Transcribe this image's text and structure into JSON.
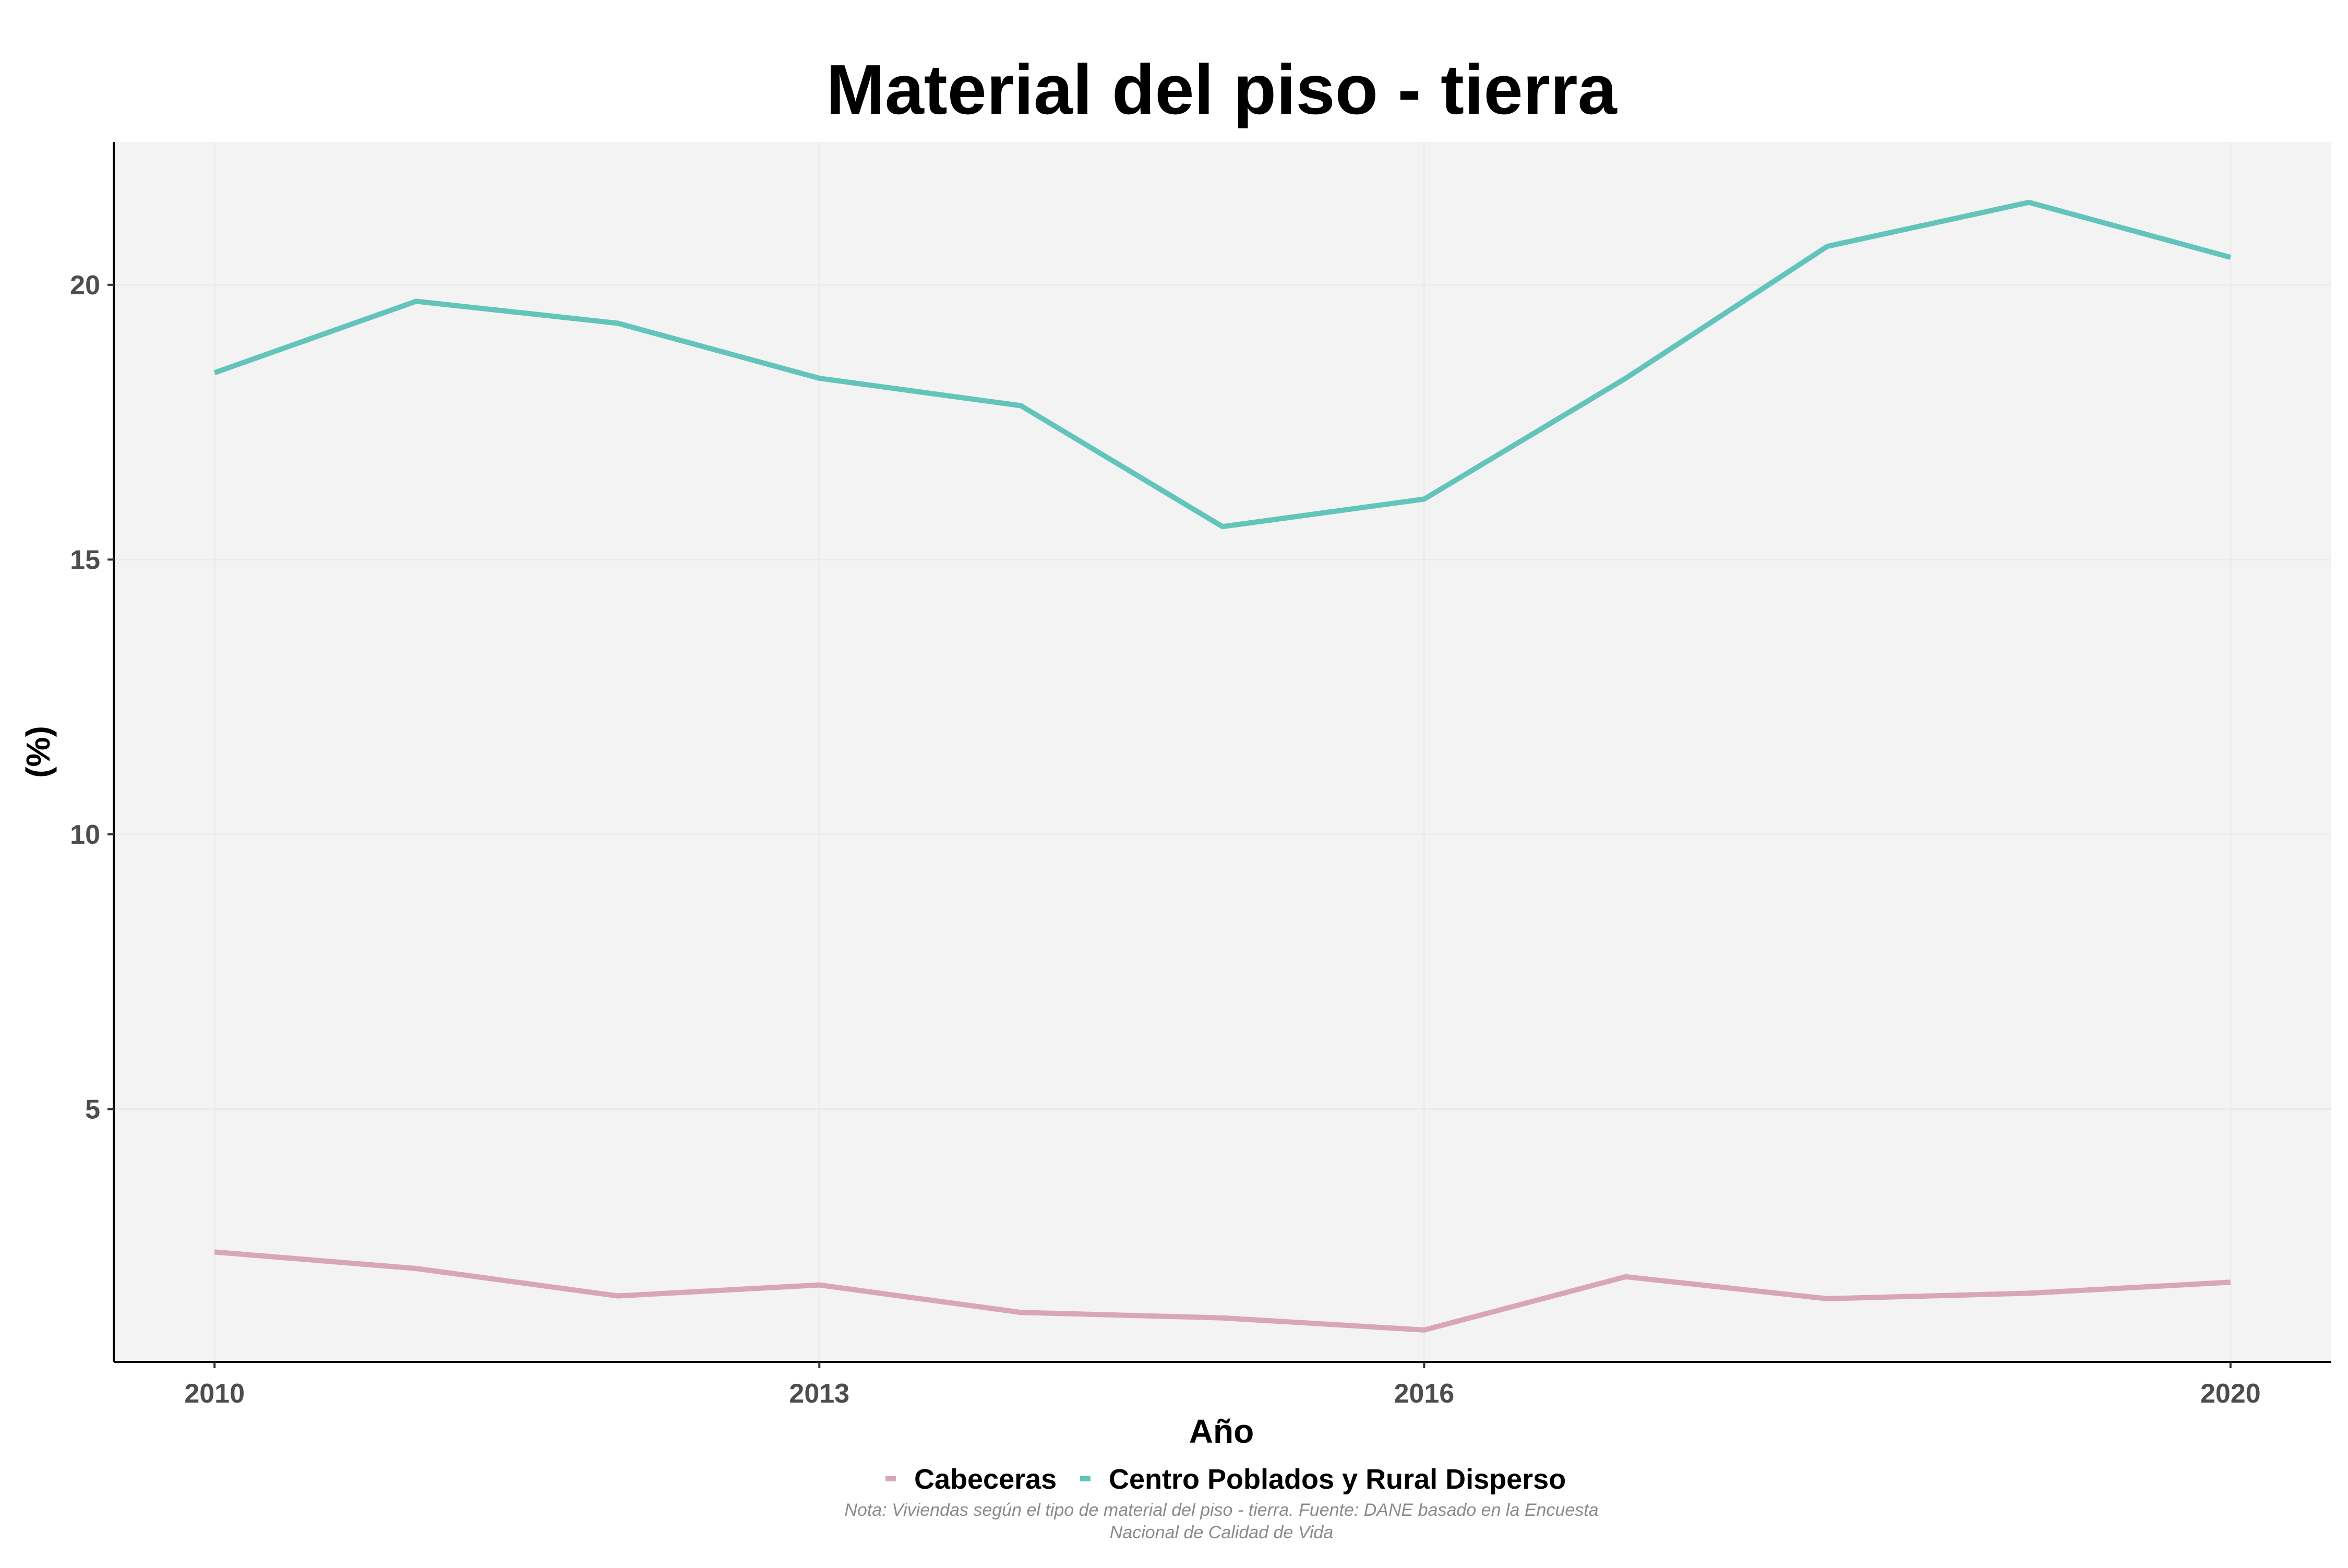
{
  "chart_data": {
    "type": "line",
    "title": "Material del piso - tierra",
    "xlabel": "Año",
    "ylabel": "(%)",
    "x": [
      2010,
      2011,
      2012,
      2013,
      2014,
      2015,
      2016,
      2017,
      2018,
      2019,
      2020
    ],
    "x_ticks": [
      2010,
      2013,
      2016,
      2020
    ],
    "y_ticks": [
      5,
      10,
      15,
      20
    ],
    "xlim": [
      2009.5,
      2020.5
    ],
    "ylim": [
      0.4,
      22.6
    ],
    "grid": true,
    "legend_position": "bottom",
    "series": [
      {
        "name": "Cabeceras",
        "color": "#d9a7b4",
        "values": [
          2.4,
          2.1,
          1.6,
          1.8,
          1.3,
          1.2,
          0.98,
          1.95,
          1.55,
          1.65,
          1.85
        ]
      },
      {
        "name": "Centro Poblados y Rural Disperso",
        "color": "#62c4bb",
        "values": [
          18.4,
          19.7,
          19.3,
          18.3,
          17.8,
          15.6,
          16.1,
          18.3,
          20.7,
          21.5,
          20.5
        ]
      }
    ],
    "note": "Nota: Viviendas según el tipo de material del piso - tierra. Fuente: DANE basado en la Encuesta Nacional de Calidad de Vida",
    "note_lines": [
      "Nota: Viviendas según el tipo de material del piso - tierra. Fuente: DANE basado en la Encuesta",
      "Nacional de Calidad de Vida"
    ],
    "colors": {
      "panel_background": "#f3f3f3",
      "grid": "#ebebeb",
      "axis": "#000000"
    }
  }
}
